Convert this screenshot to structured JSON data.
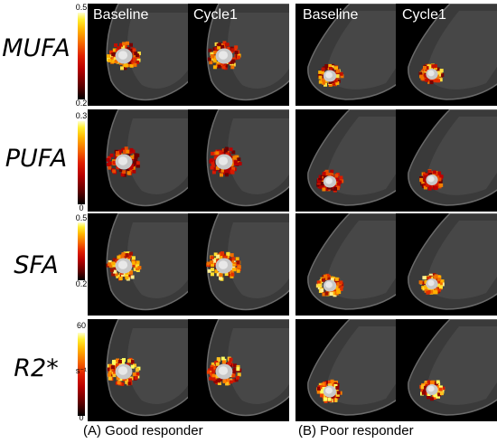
{
  "columns": [
    "Baseline",
    "Cycle1",
    "Baseline",
    "Cycle1"
  ],
  "groups": [
    "(A) Good responder",
    "(B) Poor responder"
  ],
  "rows": [
    {
      "label": "MUFA",
      "scale_max": "0.5",
      "scale_min": "0.2",
      "unit": ""
    },
    {
      "label": "PUFA",
      "scale_max": "0.3",
      "scale_min": "0",
      "unit": ""
    },
    {
      "label": "SFA",
      "scale_max": "0.5",
      "scale_min": "0.2",
      "unit": ""
    },
    {
      "label": "R2*",
      "scale_max": "60",
      "scale_min": "0",
      "unit": "s⁻¹"
    }
  ]
}
